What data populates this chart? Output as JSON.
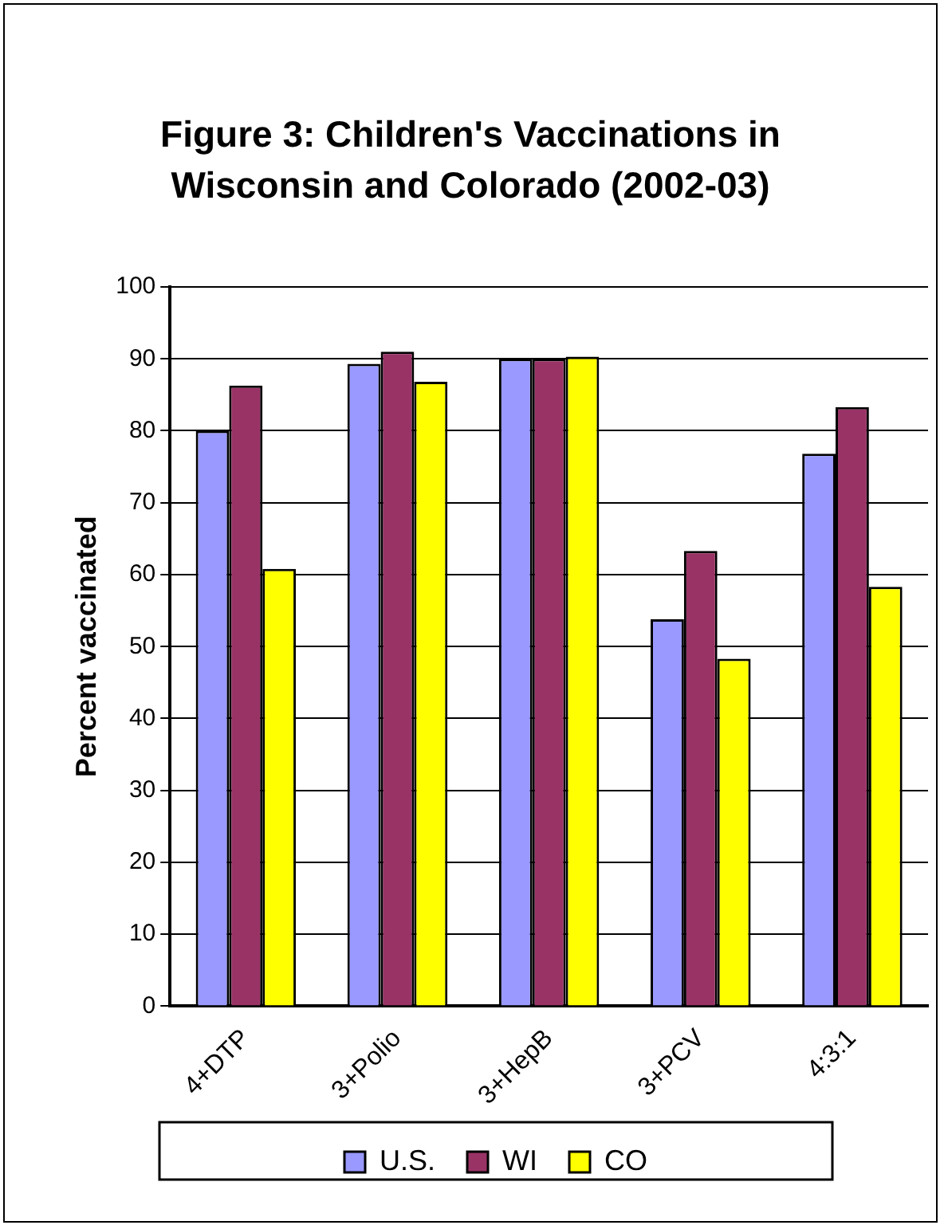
{
  "chart_data": {
    "type": "bar",
    "title": "Figure 3:  Children's Vaccinations in Wisconsin and Colorado (2002-03)",
    "ylabel": "Percent vaccinated",
    "categories": [
      "4+DTP",
      "3+Polio",
      "3+HepB",
      "3+PCV",
      "4:3:1"
    ],
    "series": [
      {
        "name": "U.S.",
        "color": "#9999ff",
        "values": [
          80,
          89.3,
          90,
          53.8,
          76.8
        ]
      },
      {
        "name": "WI",
        "color": "#993366",
        "values": [
          86.3,
          91,
          90,
          63.3,
          83.3
        ]
      },
      {
        "name": "CO",
        "color": "#ffff00",
        "values": [
          60.8,
          86.8,
          90.3,
          48.3,
          58.3
        ]
      }
    ],
    "ylim": [
      0,
      100
    ],
    "yticks": [
      0,
      10,
      20,
      30,
      40,
      50,
      60,
      70,
      80,
      90,
      100
    ],
    "grid": "y",
    "legend": "bottom"
  }
}
